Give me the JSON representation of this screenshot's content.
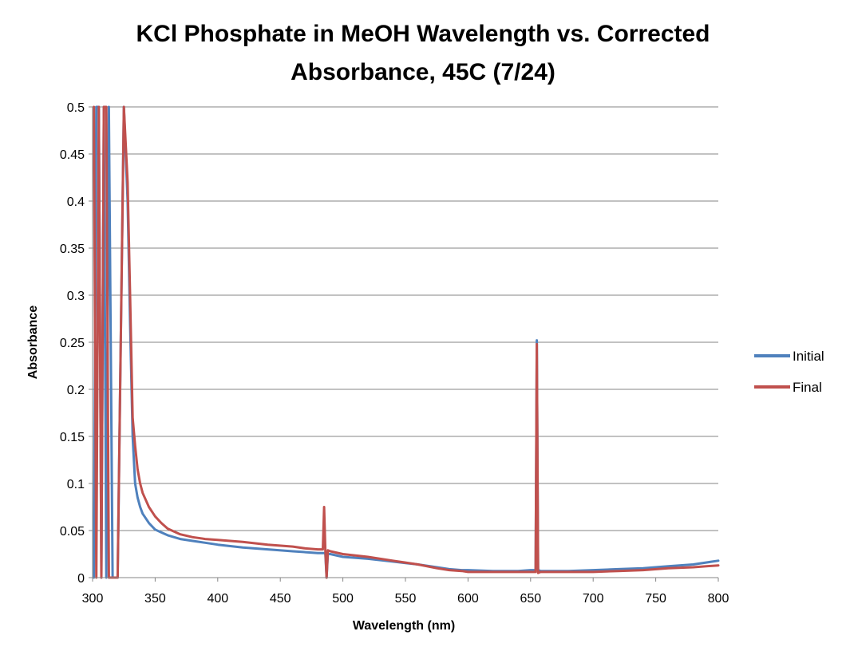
{
  "chart_data": {
    "type": "line",
    "title_line1": "KCl Phosphate in MeOH Wavelength vs. Corrected",
    "title_line2": "Absorbance, 45C (7/24)",
    "xlabel": "Wavelength (nm)",
    "ylabel": "Absorbance",
    "xlim": [
      300,
      800
    ],
    "ylim": [
      0,
      0.5
    ],
    "x_ticks": [
      300,
      350,
      400,
      450,
      500,
      550,
      600,
      650,
      700,
      750,
      800
    ],
    "y_ticks": [
      0,
      0.05,
      0.1,
      0.15,
      0.2,
      0.25,
      0.3,
      0.35,
      0.4,
      0.45,
      0.5
    ],
    "y_tick_labels": [
      "0",
      "0.05",
      "0.1",
      "0.15",
      "0.2",
      "0.25",
      "0.3",
      "0.35",
      "0.4",
      "0.45",
      "0.5"
    ],
    "grid": "horizontal",
    "legend_position": "right",
    "series": [
      {
        "name": "Initial",
        "color": "#4F81BD",
        "x": [
          301,
          303,
          305,
          307,
          309,
          311,
          313,
          316,
          320,
          325,
          328,
          330,
          332,
          334,
          336,
          338,
          340,
          345,
          350,
          355,
          360,
          370,
          380,
          390,
          400,
          420,
          440,
          460,
          470,
          480,
          484,
          486,
          487,
          488,
          490,
          500,
          520,
          540,
          560,
          575,
          585,
          595,
          600,
          620,
          640,
          650,
          654,
          655,
          656,
          658,
          665,
          680,
          700,
          720,
          740,
          760,
          780,
          800
        ],
        "y": [
          0,
          0.5,
          0.5,
          0,
          0.5,
          0,
          0.5,
          0,
          0,
          0.5,
          0.4,
          0.27,
          0.15,
          0.1,
          0.085,
          0.075,
          0.068,
          0.058,
          0.051,
          0.048,
          0.045,
          0.041,
          0.039,
          0.037,
          0.035,
          0.032,
          0.03,
          0.028,
          0.027,
          0.026,
          0.026,
          0.026,
          0,
          0.025,
          0.025,
          0.022,
          0.02,
          0.017,
          0.014,
          0.011,
          0.009,
          0.008,
          0.008,
          0.007,
          0.007,
          0.008,
          0.008,
          0.252,
          0.008,
          0.007,
          0.007,
          0.007,
          0.008,
          0.009,
          0.01,
          0.012,
          0.014,
          0.018
        ]
      },
      {
        "name": "Final",
        "color": "#C0504D",
        "x": [
          301,
          303,
          305,
          307,
          309,
          311,
          313,
          316,
          320,
          325,
          328,
          330,
          332,
          334,
          336,
          338,
          340,
          345,
          350,
          355,
          360,
          370,
          380,
          390,
          400,
          420,
          440,
          460,
          470,
          480,
          484,
          485,
          486,
          487,
          488,
          490,
          500,
          520,
          540,
          560,
          575,
          585,
          595,
          600,
          620,
          640,
          650,
          654,
          655,
          656,
          658,
          665,
          680,
          700,
          720,
          740,
          760,
          780,
          800
        ],
        "y": [
          0.5,
          0,
          0.5,
          0,
          0.5,
          0.5,
          0,
          0,
          0,
          0.5,
          0.42,
          0.3,
          0.17,
          0.14,
          0.115,
          0.1,
          0.09,
          0.075,
          0.065,
          0.058,
          0.052,
          0.046,
          0.043,
          0.041,
          0.04,
          0.038,
          0.035,
          0.033,
          0.031,
          0.03,
          0.03,
          0.075,
          0.03,
          0,
          0.029,
          0.028,
          0.025,
          0.022,
          0.018,
          0.014,
          0.01,
          0.008,
          0.007,
          0.006,
          0.006,
          0.006,
          0.006,
          0.006,
          0.248,
          0.005,
          0.006,
          0.006,
          0.006,
          0.006,
          0.007,
          0.008,
          0.01,
          0.011,
          0.013
        ]
      }
    ]
  }
}
